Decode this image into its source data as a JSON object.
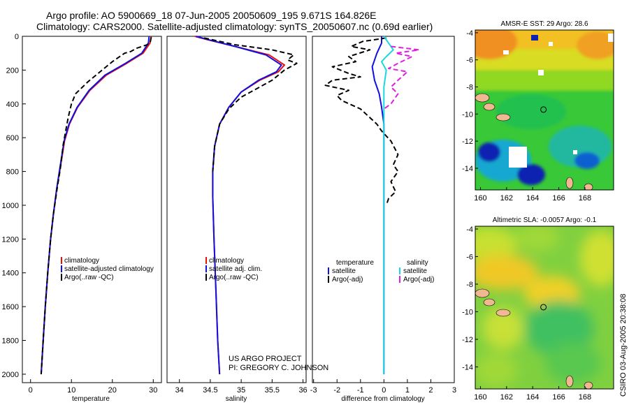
{
  "header": {
    "line1": "Argo profile: AO 5900669_18 07-Jun-2005 20050609_195 9.671S 164.826E",
    "line2": "Climatology: CARS2000. Satellite-adjusted climatology: synTS_20050607.nc (0.69d earlier)"
  },
  "credits": {
    "project": "US ARGO PROJECT",
    "pi": "PI: GREGORY C. JOHNSON"
  },
  "stamp": "CSIRO 03-Aug-2005 20:38:08",
  "colors": {
    "climatology": "#e8100c",
    "satellite": "#1010e0",
    "argo": "#000000",
    "sal_satellite": "#18d8e0",
    "sal_argo": "#e020e0"
  },
  "chart_data": [
    {
      "type": "line",
      "id": "temperature",
      "xlabel": "temperature",
      "ylabel": "",
      "xlim": [
        -2,
        32
      ],
      "ylim": [
        2050,
        0
      ],
      "xticks": [
        0,
        10,
        20,
        30
      ],
      "yticks": [
        0,
        200,
        400,
        600,
        800,
        1000,
        1200,
        1400,
        1600,
        1800,
        2000
      ],
      "legend": [
        "climatology",
        "satellite-adjusted climatology",
        "Argo(..raw -QC)"
      ],
      "series": [
        {
          "name": "climatology",
          "color": "#e8100c",
          "dash": "",
          "points": [
            [
              29.5,
              0
            ],
            [
              29.2,
              40
            ],
            [
              27.5,
              100
            ],
            [
              23.5,
              160
            ],
            [
              18.5,
              230
            ],
            [
              14.5,
              320
            ],
            [
              11.5,
              420
            ],
            [
              9.5,
              520
            ],
            [
              8.3,
              620
            ],
            [
              7.4,
              760
            ],
            [
              6.4,
              900
            ],
            [
              5.6,
              1050
            ],
            [
              4.9,
              1200
            ],
            [
              4.2,
              1400
            ],
            [
              3.6,
              1600
            ],
            [
              3.1,
              1800
            ],
            [
              2.6,
              2000
            ]
          ]
        },
        {
          "name": "satellite-adjusted climatology",
          "color": "#1010e0",
          "dash": "",
          "points": [
            [
              29.0,
              0
            ],
            [
              28.8,
              40
            ],
            [
              27.2,
              100
            ],
            [
              23.2,
              160
            ],
            [
              18.2,
              230
            ],
            [
              14.3,
              320
            ],
            [
              11.4,
              420
            ],
            [
              9.4,
              520
            ],
            [
              8.2,
              620
            ],
            [
              7.3,
              760
            ],
            [
              6.4,
              900
            ],
            [
              5.6,
              1050
            ],
            [
              4.9,
              1200
            ],
            [
              4.2,
              1400
            ],
            [
              3.6,
              1600
            ],
            [
              3.1,
              1800
            ],
            [
              2.6,
              2000
            ]
          ]
        },
        {
          "name": "Argo(..raw -QC)",
          "color": "#000000",
          "dash": "7,4",
          "points": [
            [
              29.5,
              5
            ],
            [
              29.3,
              30
            ],
            [
              28.5,
              50
            ],
            [
              26.0,
              70
            ],
            [
              24.5,
              90
            ],
            [
              23.0,
              100
            ],
            [
              20.0,
              150
            ],
            [
              17.5,
              200
            ],
            [
              14.0,
              270
            ],
            [
              11.0,
              340
            ],
            [
              10.0,
              400
            ],
            [
              9.2,
              480
            ],
            [
              8.6,
              560
            ],
            [
              8.0,
              640
            ],
            [
              7.3,
              780
            ],
            [
              6.5,
              900
            ],
            [
              5.6,
              1050
            ],
            [
              4.9,
              1200
            ],
            [
              4.2,
              1400
            ],
            [
              3.6,
              1600
            ],
            [
              3.1,
              1800
            ],
            [
              2.6,
              2000
            ]
          ]
        }
      ]
    },
    {
      "type": "line",
      "id": "salinity",
      "xlabel": "salinity",
      "ylabel": "",
      "xlim": [
        33.8,
        36.05
      ],
      "ylim": [
        2050,
        0
      ],
      "xticks": [
        34,
        34.5,
        35,
        35.5,
        36
      ],
      "yticks": [],
      "legend": [
        "climatology",
        "satellite adj. clim.",
        "Argo(..raw -QC)"
      ],
      "series": [
        {
          "name": "climatology",
          "color": "#e8100c",
          "dash": "",
          "points": [
            [
              34.25,
              0
            ],
            [
              34.45,
              20
            ],
            [
              34.9,
              60
            ],
            [
              35.45,
              110
            ],
            [
              35.7,
              170
            ],
            [
              35.6,
              210
            ],
            [
              35.3,
              260
            ],
            [
              35.0,
              330
            ],
            [
              34.8,
              420
            ],
            [
              34.65,
              520
            ],
            [
              34.57,
              650
            ],
            [
              34.54,
              800
            ],
            [
              34.54,
              950
            ],
            [
              34.56,
              1200
            ],
            [
              34.59,
              1500
            ],
            [
              34.62,
              1800
            ],
            [
              34.65,
              2000
            ]
          ]
        },
        {
          "name": "satellite adj. clim.",
          "color": "#1010e0",
          "dash": "",
          "points": [
            [
              34.27,
              0
            ],
            [
              34.47,
              20
            ],
            [
              34.9,
              60
            ],
            [
              35.4,
              110
            ],
            [
              35.65,
              170
            ],
            [
              35.57,
              210
            ],
            [
              35.28,
              260
            ],
            [
              35.0,
              330
            ],
            [
              34.8,
              420
            ],
            [
              34.65,
              520
            ],
            [
              34.57,
              650
            ],
            [
              34.54,
              800
            ],
            [
              34.54,
              950
            ],
            [
              34.56,
              1200
            ],
            [
              34.59,
              1500
            ],
            [
              34.62,
              1800
            ],
            [
              34.65,
              2000
            ]
          ]
        },
        {
          "name": "Argo(..raw -QC)",
          "color": "#000000",
          "dash": "7,4",
          "points": [
            [
              34.4,
              10
            ],
            [
              34.9,
              50
            ],
            [
              35.5,
              80
            ],
            [
              35.85,
              110
            ],
            [
              35.75,
              140
            ],
            [
              35.9,
              160
            ],
            [
              35.7,
              200
            ],
            [
              35.5,
              260
            ],
            [
              35.3,
              300
            ],
            [
              35.0,
              360
            ],
            [
              34.8,
              430
            ],
            [
              34.65,
              520
            ],
            [
              34.57,
              650
            ],
            [
              34.54,
              800
            ]
          ]
        }
      ]
    },
    {
      "type": "line",
      "id": "difference",
      "xlabel": "difference from climatology",
      "ylabel": "",
      "xlim": [
        -3.05,
        3
      ],
      "ylim": [
        2050,
        0
      ],
      "xticks": [
        -3,
        -2,
        -1,
        0,
        1,
        2,
        3
      ],
      "yticks": [],
      "legend_left": [
        "temperature",
        "satellite",
        "Argo(-adj)"
      ],
      "legend_right": [
        "salinity",
        "satellite",
        "Argo(-adj)"
      ],
      "series": [
        {
          "name": "temperature satellite",
          "color": "#1010e0",
          "dash": "",
          "points": [
            [
              -0.1,
              0
            ],
            [
              -0.1,
              40
            ],
            [
              -0.3,
              100
            ],
            [
              -0.5,
              180
            ],
            [
              -0.4,
              260
            ],
            [
              -0.2,
              340
            ],
            [
              -0.1,
              420
            ],
            [
              0.0,
              520
            ],
            [
              0.0,
              700
            ],
            [
              0.0,
              2000
            ]
          ]
        },
        {
          "name": "temperature Argo(-adj)",
          "color": "#000000",
          "dash": "7,4",
          "points": [
            [
              0.1,
              10
            ],
            [
              -0.9,
              30
            ],
            [
              -1.4,
              60
            ],
            [
              -0.6,
              80
            ],
            [
              -1.5,
              120
            ],
            [
              -1.2,
              150
            ],
            [
              -2.2,
              180
            ],
            [
              -1.5,
              220
            ],
            [
              -1.0,
              240
            ],
            [
              -2.2,
              260
            ],
            [
              -2.5,
              290
            ],
            [
              -1.5,
              320
            ],
            [
              -2.0,
              350
            ],
            [
              -1.8,
              380
            ],
            [
              -1.0,
              430
            ],
            [
              -0.3,
              520
            ],
            [
              -0.1,
              560
            ],
            [
              0.3,
              620
            ],
            [
              0.6,
              700
            ],
            [
              0.4,
              760
            ],
            [
              0.6,
              800
            ],
            [
              0.3,
              860
            ],
            [
              0.5,
              920
            ],
            [
              0.2,
              960
            ],
            [
              0.1,
              1000
            ]
          ]
        },
        {
          "name": "salinity satellite",
          "color": "#18d8e0",
          "dash": "",
          "points": [
            [
              0.0,
              0
            ],
            [
              0.2,
              40
            ],
            [
              0.4,
              80
            ],
            [
              0.1,
              120
            ],
            [
              -0.1,
              150
            ],
            [
              0.1,
              200
            ],
            [
              0.0,
              300
            ],
            [
              0.0,
              600
            ],
            [
              0.0,
              2000
            ]
          ]
        },
        {
          "name": "salinity Argo(-adj)",
          "color": "#e020e0",
          "dash": "7,4",
          "points": [
            [
              0.3,
              60
            ],
            [
              1.5,
              80
            ],
            [
              0.5,
              100
            ],
            [
              1.2,
              120
            ],
            [
              0.6,
              160
            ],
            [
              0.2,
              190
            ],
            [
              1.0,
              210
            ],
            [
              0.6,
              260
            ],
            [
              0.3,
              300
            ],
            [
              0.6,
              340
            ],
            [
              0.3,
              400
            ],
            [
              0.0,
              430
            ]
          ]
        }
      ]
    },
    {
      "type": "heatmap",
      "id": "sst_map",
      "title": "AMSR-E SST: 29 Argo: 28.6",
      "xlim": [
        159.6,
        170.2
      ],
      "ylim": [
        -15.6,
        -3.8
      ],
      "xticks": [
        160,
        162,
        164,
        166,
        168
      ],
      "yticks": [
        -4,
        -6,
        -8,
        -10,
        -12,
        -14
      ],
      "marker": [
        164.826,
        -9.671
      ]
    },
    {
      "type": "heatmap",
      "id": "sla_map",
      "title": "Altimetric SLA: -0.0057 Argo: -0.1",
      "xlim": [
        159.6,
        170.2
      ],
      "ylim": [
        -15.6,
        -3.8
      ],
      "xticks": [
        160,
        162,
        164,
        166,
        168
      ],
      "yticks": [
        -4,
        -6,
        -8,
        -10,
        -12,
        -14
      ],
      "marker": [
        164.826,
        -9.671
      ]
    }
  ]
}
